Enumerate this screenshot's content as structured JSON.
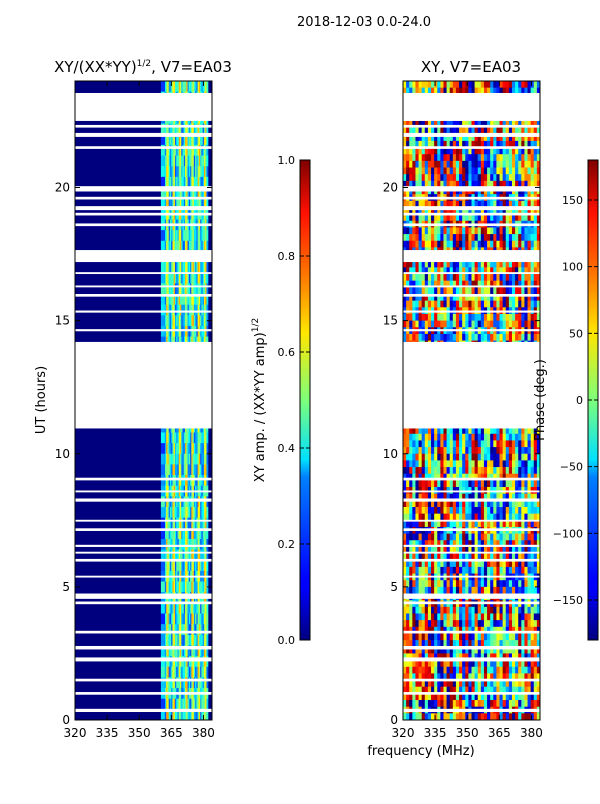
{
  "suptitle": "2018-12-03 0.0-24.0",
  "common_xlabel": "frequency (MHz)",
  "chart_data": [
    {
      "type": "heatmap",
      "title_main": "XY/(XX*YY)",
      "title_sup": "1/2",
      "title_rest": ", V7=EA03",
      "xlabel": "",
      "ylabel": "UT (hours)",
      "xlim": [
        320,
        384
      ],
      "ylim": [
        0,
        24
      ],
      "xticks": [
        320,
        335,
        350,
        365,
        380
      ],
      "yticks": [
        0,
        5,
        10,
        15,
        20
      ],
      "colorbar": {
        "label_main": "XY amp. / (XX*YY amp)",
        "label_sup": "1/2",
        "range": [
          0.0,
          1.0
        ],
        "ticks": [
          "0.0",
          "0.2",
          "0.4",
          "0.6",
          "0.8",
          "1.0"
        ],
        "tick_values": [
          0.0,
          0.2,
          0.4,
          0.6,
          0.8,
          1.0
        ],
        "colormap": "jet"
      },
      "hot_band_mhz": [
        362,
        382
      ],
      "gaps_hours": [
        [
          0.3,
          0.42
        ],
        [
          0.95,
          1.05
        ],
        [
          1.45,
          1.55
        ],
        [
          2.2,
          2.35
        ],
        [
          2.65,
          2.78
        ],
        [
          3.25,
          3.35
        ],
        [
          4.35,
          4.45
        ],
        [
          4.55,
          4.75
        ],
        [
          5.35,
          5.42
        ],
        [
          5.95,
          6.05
        ],
        [
          6.25,
          6.32
        ],
        [
          6.5,
          6.58
        ],
        [
          7.1,
          7.2
        ],
        [
          7.45,
          7.52
        ],
        [
          8.2,
          8.32
        ],
        [
          8.55,
          8.62
        ],
        [
          9.0,
          9.1
        ],
        [
          10.95,
          14.2
        ],
        [
          14.6,
          14.68
        ],
        [
          15.3,
          15.38
        ],
        [
          15.9,
          16.0
        ],
        [
          16.25,
          16.32
        ],
        [
          16.75,
          16.82
        ],
        [
          17.2,
          17.65
        ],
        [
          18.55,
          18.65
        ],
        [
          18.95,
          19.05
        ],
        [
          19.15,
          19.3
        ],
        [
          19.55,
          19.65
        ],
        [
          19.85,
          20.05
        ],
        [
          21.45,
          21.55
        ],
        [
          21.9,
          22.05
        ],
        [
          22.25,
          22.35
        ],
        [
          22.5,
          23.55
        ]
      ]
    },
    {
      "type": "heatmap",
      "title_main": "XY, V7=EA03",
      "title_sup": "",
      "title_rest": "",
      "xlabel": "",
      "ylabel": "",
      "xlim": [
        320,
        384
      ],
      "ylim": [
        0,
        24
      ],
      "xticks": [
        320,
        335,
        350,
        365,
        380
      ],
      "yticks": [
        0,
        5,
        10,
        15,
        20
      ],
      "colorbar": {
        "label_main": "Phase (deg.)",
        "label_sup": "",
        "range": [
          -180,
          180
        ],
        "ticks": [
          "−150",
          "−100",
          "−50",
          "0",
          "50",
          "100",
          "150"
        ],
        "tick_values": [
          -150,
          -100,
          -50,
          0,
          50,
          100,
          150
        ],
        "colormap": "jet"
      },
      "gaps_hours": [
        [
          0.3,
          0.42
        ],
        [
          0.95,
          1.05
        ],
        [
          1.45,
          1.55
        ],
        [
          2.2,
          2.35
        ],
        [
          2.65,
          2.78
        ],
        [
          3.25,
          3.35
        ],
        [
          4.35,
          4.45
        ],
        [
          4.55,
          4.75
        ],
        [
          5.35,
          5.42
        ],
        [
          5.95,
          6.05
        ],
        [
          6.25,
          6.32
        ],
        [
          6.5,
          6.58
        ],
        [
          7.1,
          7.2
        ],
        [
          7.45,
          7.52
        ],
        [
          8.2,
          8.32
        ],
        [
          8.55,
          8.62
        ],
        [
          9.0,
          9.1
        ],
        [
          10.95,
          14.2
        ],
        [
          14.6,
          14.68
        ],
        [
          15.3,
          15.38
        ],
        [
          15.9,
          16.0
        ],
        [
          16.25,
          16.32
        ],
        [
          16.75,
          16.82
        ],
        [
          17.2,
          17.65
        ],
        [
          18.55,
          18.65
        ],
        [
          18.95,
          19.05
        ],
        [
          19.15,
          19.3
        ],
        [
          19.55,
          19.65
        ],
        [
          19.85,
          20.05
        ],
        [
          21.45,
          21.55
        ],
        [
          21.9,
          22.05
        ],
        [
          22.25,
          22.35
        ],
        [
          22.5,
          23.55
        ]
      ]
    }
  ]
}
